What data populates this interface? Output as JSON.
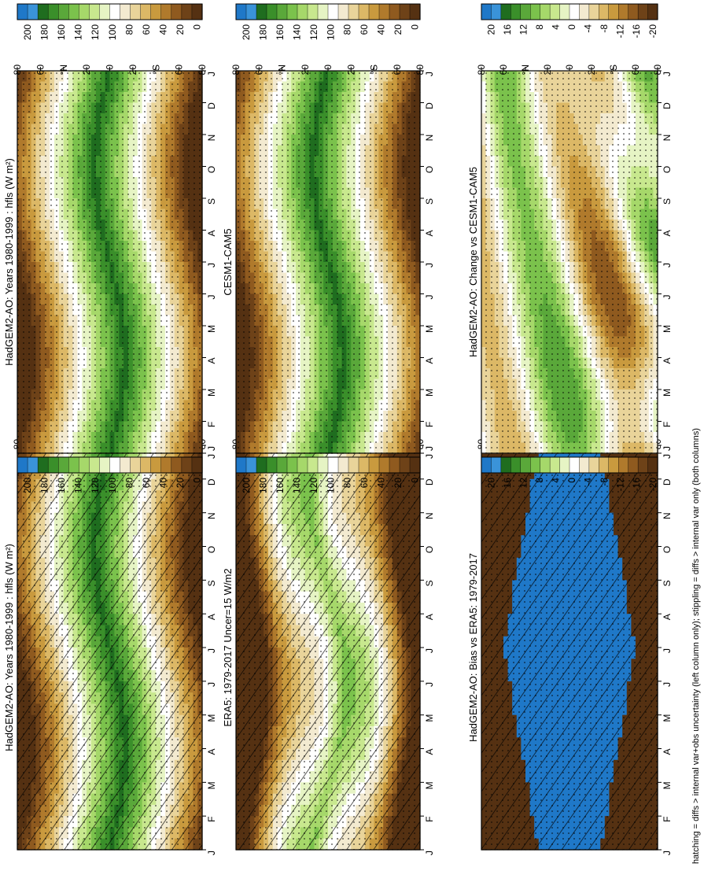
{
  "figure": {
    "footnote": "hatching = diffs > internal var+obs uncertainty (left column only); stippling = diffs > internal var only (both columns)"
  },
  "panels": [
    {
      "title": "HadGEM2-AO: Years 1980-1999 : hfls (W m²)",
      "field": "model",
      "hatch": true,
      "stipple": true
    },
    {
      "title": "ERA5: 1979-2017 Uncer=15 W/m2",
      "field": "obs",
      "hatch": true,
      "stipple": true
    },
    {
      "title": "HadGEM2-AO: Bias vs ERA5: 1979-2017",
      "field": "bias",
      "hatch": true,
      "stipple": true
    },
    {
      "title": "HadGEM2-AO: Years 1980-1999 : hfls (W m²)",
      "field": "model2",
      "hatch": false,
      "stipple": true
    },
    {
      "title": "CESM1-CAM5",
      "field": "cesm",
      "hatch": false,
      "stipple": true
    },
    {
      "title": "HadGEM2-AO: Change vs CESM1-CAM5",
      "field": "change",
      "hatch": false,
      "stipple": true
    }
  ],
  "months": [
    "J",
    "F",
    "M",
    "A",
    "M",
    "J",
    "J",
    "A",
    "S",
    "O",
    "N",
    "D",
    "J"
  ],
  "lat_ticks": [
    "80",
    "60",
    "°N",
    "20",
    "0",
    "20",
    "°S",
    "60",
    "80"
  ],
  "colorbars": {
    "absolute": [
      "200",
      "180",
      "160",
      "140",
      "120",
      "100",
      "80",
      "60",
      "40",
      "20",
      "0"
    ],
    "difference": [
      "20",
      "16",
      "12",
      "8",
      "4",
      "0",
      "-4",
      "-8",
      "-12",
      "-16",
      "-20"
    ]
  },
  "palettes": {
    "absolute": [
      "#1f78c8",
      "#3a93d9",
      "#1f6d1f",
      "#3a8f2a",
      "#5aa83a",
      "#7bc24c",
      "#a6d86a",
      "#c8e88e",
      "#e6f4c4",
      "#ffffff",
      "#f3ead0",
      "#e9d49a",
      "#dcb866",
      "#c99a3e",
      "#b07a2c",
      "#8f5a1f",
      "#6e4218",
      "#553112"
    ],
    "difference": [
      "#1f78c8",
      "#3a93d9",
      "#1f6d1f",
      "#3a8f2a",
      "#5aa83a",
      "#7bc24c",
      "#a6d86a",
      "#c8e88e",
      "#e6f4c4",
      "#ffffff",
      "#f3ead0",
      "#e9d49a",
      "#dcb866",
      "#c99a3e",
      "#b07a2c",
      "#8f5a1f",
      "#6e4218",
      "#553112"
    ]
  },
  "chart_data": [
    {
      "type": "heatmap",
      "title": "HadGEM2-AO: Years 1980-1999 : hfls (W m²)",
      "x": [
        "J",
        "F",
        "M",
        "A",
        "M",
        "J",
        "J",
        "A",
        "S",
        "O",
        "N",
        "D",
        "J"
      ],
      "y_ticks": [
        "80",
        "60",
        "°N",
        "20",
        "0",
        "20",
        "°S",
        "60",
        "80"
      ],
      "colorbar": [
        0,
        20,
        40,
        60,
        80,
        100,
        120,
        140,
        160,
        180,
        200
      ]
    },
    {
      "type": "heatmap",
      "title": "ERA5: 1979-2017 Uncer=15 W/m2",
      "x": [
        "J",
        "F",
        "M",
        "A",
        "M",
        "J",
        "J",
        "A",
        "S",
        "O",
        "N",
        "D",
        "J"
      ],
      "y_ticks": [
        "80",
        "60",
        "°N",
        "20",
        "0",
        "20",
        "°S",
        "60",
        "80"
      ],
      "colorbar": [
        0,
        20,
        40,
        60,
        80,
        100,
        120,
        140,
        160,
        180,
        200
      ]
    },
    {
      "type": "heatmap",
      "title": "HadGEM2-AO: Bias vs ERA5: 1979-2017",
      "x": [
        "J",
        "F",
        "M",
        "A",
        "M",
        "J",
        "J",
        "A",
        "S",
        "O",
        "N",
        "D",
        "J"
      ],
      "y_ticks": [
        "80",
        "60",
        "°N",
        "20",
        "0",
        "20",
        "°S",
        "60",
        "80"
      ],
      "colorbar": [
        -20,
        -16,
        -12,
        -8,
        -4,
        0,
        4,
        8,
        12,
        16,
        20
      ]
    },
    {
      "type": "heatmap",
      "title": "HadGEM2-AO: Years 1980-1999 : hfls (W m²)",
      "x": [
        "J",
        "F",
        "M",
        "A",
        "M",
        "J",
        "J",
        "A",
        "S",
        "O",
        "N",
        "D",
        "J"
      ],
      "y_ticks": [
        "80",
        "60",
        "°N",
        "20",
        "0",
        "20",
        "°S",
        "60",
        "80"
      ],
      "colorbar": [
        0,
        20,
        40,
        60,
        80,
        100,
        120,
        140,
        160,
        180,
        200
      ]
    },
    {
      "type": "heatmap",
      "title": "CESM1-CAM5",
      "x": [
        "J",
        "F",
        "M",
        "A",
        "M",
        "J",
        "J",
        "A",
        "S",
        "O",
        "N",
        "D",
        "J"
      ],
      "y_ticks": [
        "80",
        "60",
        "°N",
        "20",
        "0",
        "20",
        "°S",
        "60",
        "80"
      ],
      "colorbar": [
        0,
        20,
        40,
        60,
        80,
        100,
        120,
        140,
        160,
        180,
        200
      ]
    },
    {
      "type": "heatmap",
      "title": "HadGEM2-AO: Change vs CESM1-CAM5",
      "x": [
        "J",
        "F",
        "M",
        "A",
        "M",
        "J",
        "J",
        "A",
        "S",
        "O",
        "N",
        "D",
        "J"
      ],
      "y_ticks": [
        "80",
        "60",
        "°N",
        "20",
        "0",
        "20",
        "°S",
        "60",
        "80"
      ],
      "colorbar": [
        -20,
        -16,
        -12,
        -8,
        -4,
        0,
        4,
        8,
        12,
        16,
        20
      ]
    }
  ]
}
